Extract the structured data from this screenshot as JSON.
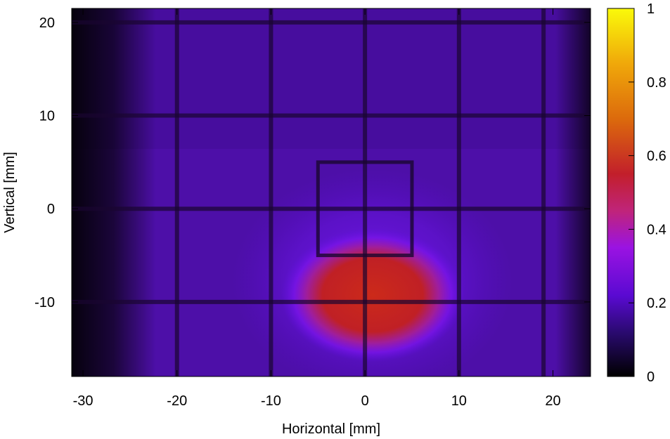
{
  "chart_data": {
    "type": "heatmap",
    "xlabel": "Horizontal [mm]",
    "ylabel": "Vertical [mm]",
    "xlim": [
      -31.2,
      24
    ],
    "ylim": [
      -18,
      21.5
    ],
    "xticks": [
      -30,
      -20,
      -10,
      0,
      10,
      20
    ],
    "yticks": [
      -10,
      0,
      10,
      20
    ],
    "colorbar": {
      "range": [
        0,
        1
      ],
      "ticks": [
        0,
        0.2,
        0.4,
        0.6,
        0.8,
        1
      ],
      "colormap": [
        "#000000",
        "#5a0ad2",
        "#9a13e2",
        "#c21f2b",
        "#dc6a0c",
        "#fafa0a"
      ]
    },
    "grid_lines_vertical_mm": [
      -20,
      -10,
      0,
      10,
      19
    ],
    "grid_lines_horizontal_mm": [
      20,
      10,
      0,
      -10
    ],
    "square_mm": {
      "x": [
        -5,
        5
      ],
      "y": [
        -5,
        5
      ]
    },
    "features": [
      {
        "kind": "hot spot",
        "center_mm": [
          1,
          -8
        ],
        "value": 0.55
      },
      {
        "kind": "background",
        "value": 0.18
      }
    ]
  }
}
